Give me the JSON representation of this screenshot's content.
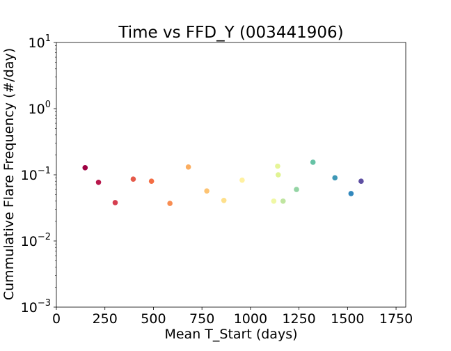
{
  "chart_data": {
    "type": "scatter",
    "title": "Time vs FFD_Y (003441906)",
    "xlabel": "Mean T_Start (days)",
    "ylabel": "Cummulative Flare Frequency (#/day)",
    "xlim": [
      0,
      1800
    ],
    "ylim": [
      0.001,
      10
    ],
    "yscale": "log",
    "grid": false,
    "x_ticks": [
      0,
      250,
      500,
      750,
      1000,
      1250,
      1500,
      1750
    ],
    "x_tick_labels": [
      "0",
      "250",
      "500",
      "750",
      "1000",
      "1250",
      "1500",
      "1750"
    ],
    "y_ticks": [
      0.001,
      0.01,
      0.1,
      1,
      10
    ],
    "y_tick_labels": [
      {
        "base": "10",
        "exp": "−3"
      },
      {
        "base": "10",
        "exp": "−2"
      },
      {
        "base": "10",
        "exp": "−1"
      },
      {
        "base": "10",
        "exp": "0"
      },
      {
        "base": "10",
        "exp": "1"
      }
    ],
    "points": [
      {
        "x": 148,
        "y": 0.128,
        "color": "#9e0142"
      },
      {
        "x": 217,
        "y": 0.077,
        "color": "#b8184c"
      },
      {
        "x": 303,
        "y": 0.038,
        "color": "#d53e4f"
      },
      {
        "x": 396,
        "y": 0.086,
        "color": "#e55a4a"
      },
      {
        "x": 490,
        "y": 0.08,
        "color": "#f46d43"
      },
      {
        "x": 585,
        "y": 0.037,
        "color": "#f88d52"
      },
      {
        "x": 680,
        "y": 0.131,
        "color": "#fbad60"
      },
      {
        "x": 775,
        "y": 0.057,
        "color": "#fdc372"
      },
      {
        "x": 863,
        "y": 0.041,
        "color": "#fee08b"
      },
      {
        "x": 957,
        "y": 0.083,
        "color": "#fff1a1"
      },
      {
        "x": 1120,
        "y": 0.04,
        "color": "#f0f8a5"
      },
      {
        "x": 1140,
        "y": 0.135,
        "color": "#e6f598"
      },
      {
        "x": 1143,
        "y": 0.1,
        "color": "#e0f393"
      },
      {
        "x": 1168,
        "y": 0.04,
        "color": "#bfe5a0"
      },
      {
        "x": 1237,
        "y": 0.06,
        "color": "#94d4a4"
      },
      {
        "x": 1322,
        "y": 0.155,
        "color": "#66c2a5"
      },
      {
        "x": 1435,
        "y": 0.09,
        "color": "#3e98b6"
      },
      {
        "x": 1518,
        "y": 0.052,
        "color": "#3288bd"
      },
      {
        "x": 1570,
        "y": 0.08,
        "color": "#5e4fa2"
      }
    ]
  }
}
